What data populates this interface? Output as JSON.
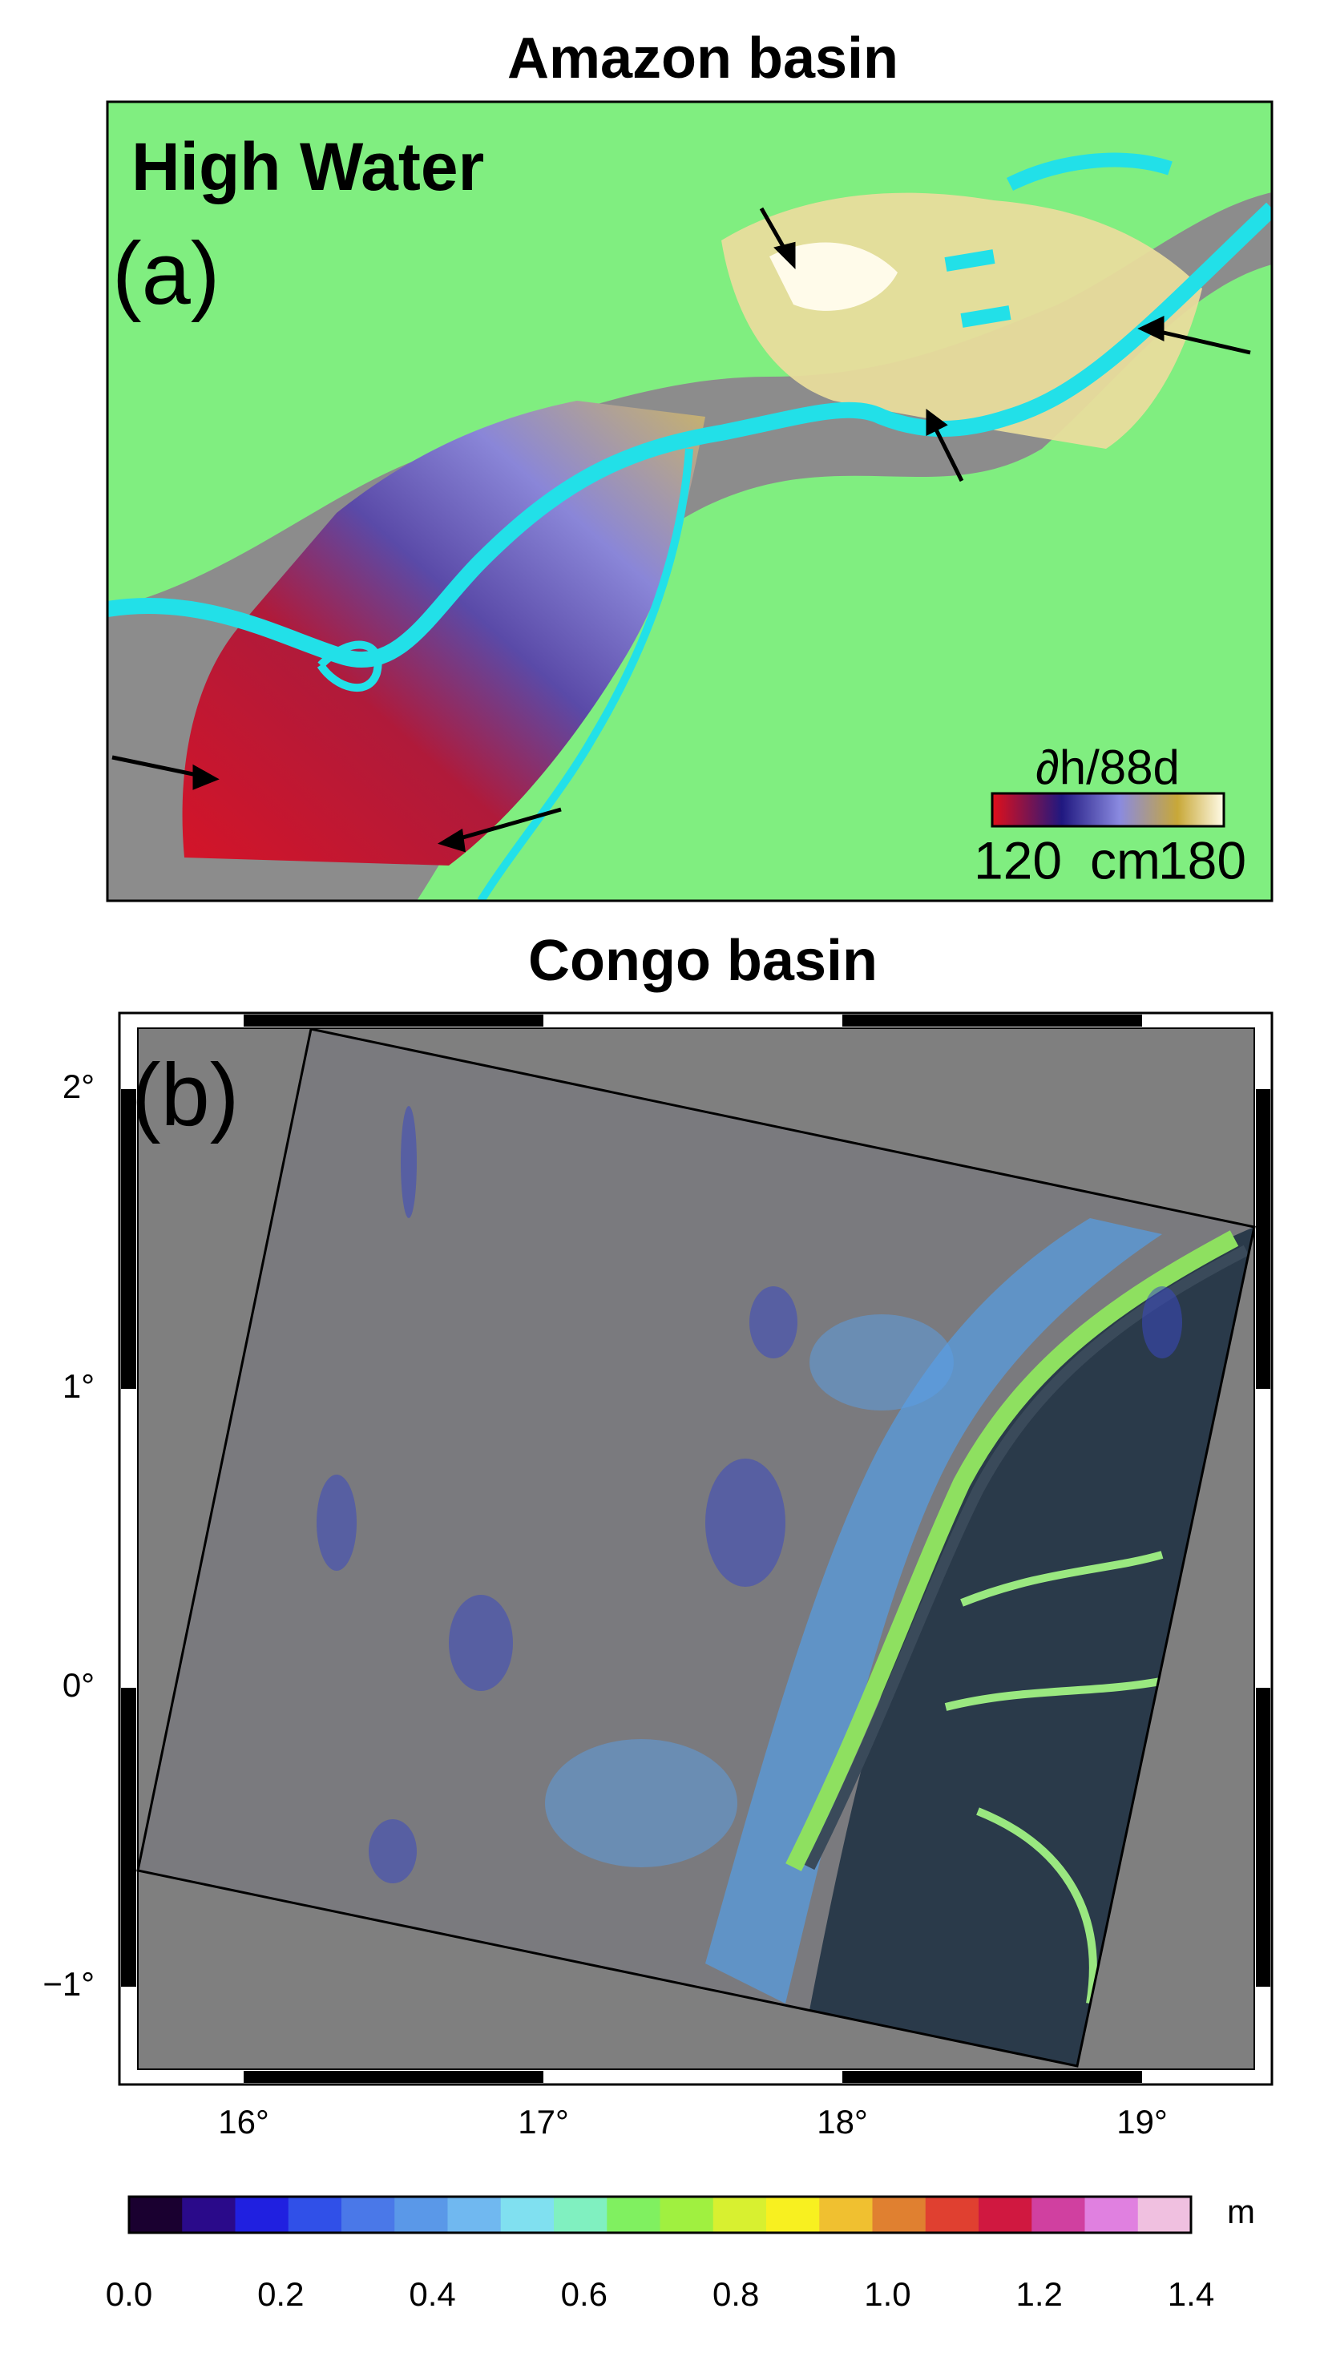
{
  "amazon": {
    "title": "Amazon basin",
    "label": "High Water",
    "panel": "(a)",
    "colorbar": {
      "title": "∂h/88d",
      "min": "120",
      "unit": "cm",
      "max": "180"
    }
  },
  "congo": {
    "title": "Congo basin",
    "panel": "(b)",
    "yticks": [
      "2°",
      "1°",
      "0°",
      "−1°"
    ],
    "xticks": [
      "16°",
      "17°",
      "18°",
      "19°"
    ],
    "colorbar": {
      "ticks": [
        "0.0",
        "0.2",
        "0.4",
        "0.6",
        "0.8",
        "1.0",
        "1.2",
        "1.4"
      ],
      "unit": "m"
    }
  }
}
